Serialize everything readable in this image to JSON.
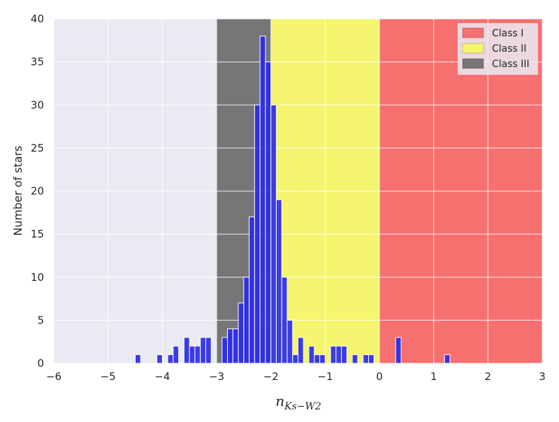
{
  "chart_data": {
    "type": "bar",
    "title": "",
    "xlabel_main": "n",
    "xlabel_sub": "Ks−W2",
    "ylabel": "Number of stars",
    "xlim": [
      -6,
      3
    ],
    "ylim": [
      0,
      40
    ],
    "xticks": [
      -6,
      -5,
      -4,
      -3,
      -2,
      -1,
      0,
      1,
      2,
      3
    ],
    "xtick_labels": [
      "−6",
      "−5",
      "−4",
      "−3",
      "−2",
      "−1",
      "0",
      "1",
      "2",
      "3"
    ],
    "yticks": [
      0,
      5,
      10,
      15,
      20,
      25,
      30,
      35,
      40
    ],
    "ytick_labels": [
      "0",
      "5",
      "10",
      "15",
      "20",
      "25",
      "30",
      "35",
      "40"
    ],
    "grid": true,
    "legend_position": "top-right",
    "regions": [
      {
        "name": "Class I",
        "x0": 0,
        "x1": 3,
        "color": "#f77070"
      },
      {
        "name": "Class II",
        "x0": -2,
        "x1": 0,
        "color": "#f5f570"
      },
      {
        "name": "Class III",
        "x0": -3,
        "x1": -2,
        "color": "#767578"
      }
    ],
    "bar_color": "#2b2be8",
    "bin_width": 0.1,
    "bins": [
      {
        "x": -4.5,
        "count": 1
      },
      {
        "x": -4.1,
        "count": 1
      },
      {
        "x": -3.9,
        "count": 1
      },
      {
        "x": -3.8,
        "count": 2
      },
      {
        "x": -3.6,
        "count": 3
      },
      {
        "x": -3.5,
        "count": 2
      },
      {
        "x": -3.4,
        "count": 2
      },
      {
        "x": -3.3,
        "count": 3
      },
      {
        "x": -3.2,
        "count": 3
      },
      {
        "x": -2.9,
        "count": 3
      },
      {
        "x": -2.8,
        "count": 4
      },
      {
        "x": -2.7,
        "count": 4
      },
      {
        "x": -2.6,
        "count": 7
      },
      {
        "x": -2.5,
        "count": 10
      },
      {
        "x": -2.4,
        "count": 17
      },
      {
        "x": -2.3,
        "count": 30
      },
      {
        "x": -2.2,
        "count": 38
      },
      {
        "x": -2.1,
        "count": 35
      },
      {
        "x": -2.0,
        "count": 30
      },
      {
        "x": -1.9,
        "count": 19
      },
      {
        "x": -1.8,
        "count": 10
      },
      {
        "x": -1.7,
        "count": 5
      },
      {
        "x": -1.6,
        "count": 1
      },
      {
        "x": -1.5,
        "count": 3
      },
      {
        "x": -1.3,
        "count": 2
      },
      {
        "x": -1.2,
        "count": 1
      },
      {
        "x": -1.1,
        "count": 1
      },
      {
        "x": -0.9,
        "count": 2
      },
      {
        "x": -0.8,
        "count": 2
      },
      {
        "x": -0.7,
        "count": 2
      },
      {
        "x": -0.5,
        "count": 1
      },
      {
        "x": -0.3,
        "count": 1
      },
      {
        "x": -0.2,
        "count": 1
      },
      {
        "x": 0.3,
        "count": 3
      },
      {
        "x": 1.2,
        "count": 1
      }
    ]
  }
}
